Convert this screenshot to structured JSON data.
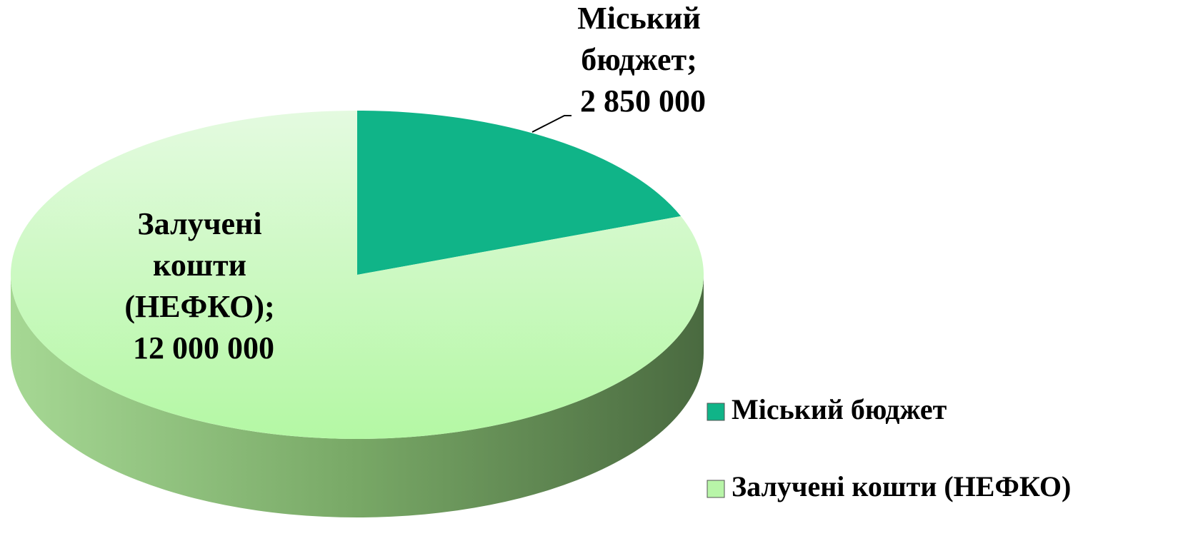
{
  "chart_data": {
    "type": "pie3d",
    "categories": [
      "Міський бюджет",
      "Залучені кошти (НЕФКО)"
    ],
    "values": [
      2850000,
      12000000
    ],
    "value_labels": [
      "Міський бюджет; 2 850 000",
      "Залучені кошти (НЕФКО); 12 000 000"
    ],
    "colors": [
      "#10b488",
      "#b8f5a8"
    ],
    "legend": "right"
  }
}
